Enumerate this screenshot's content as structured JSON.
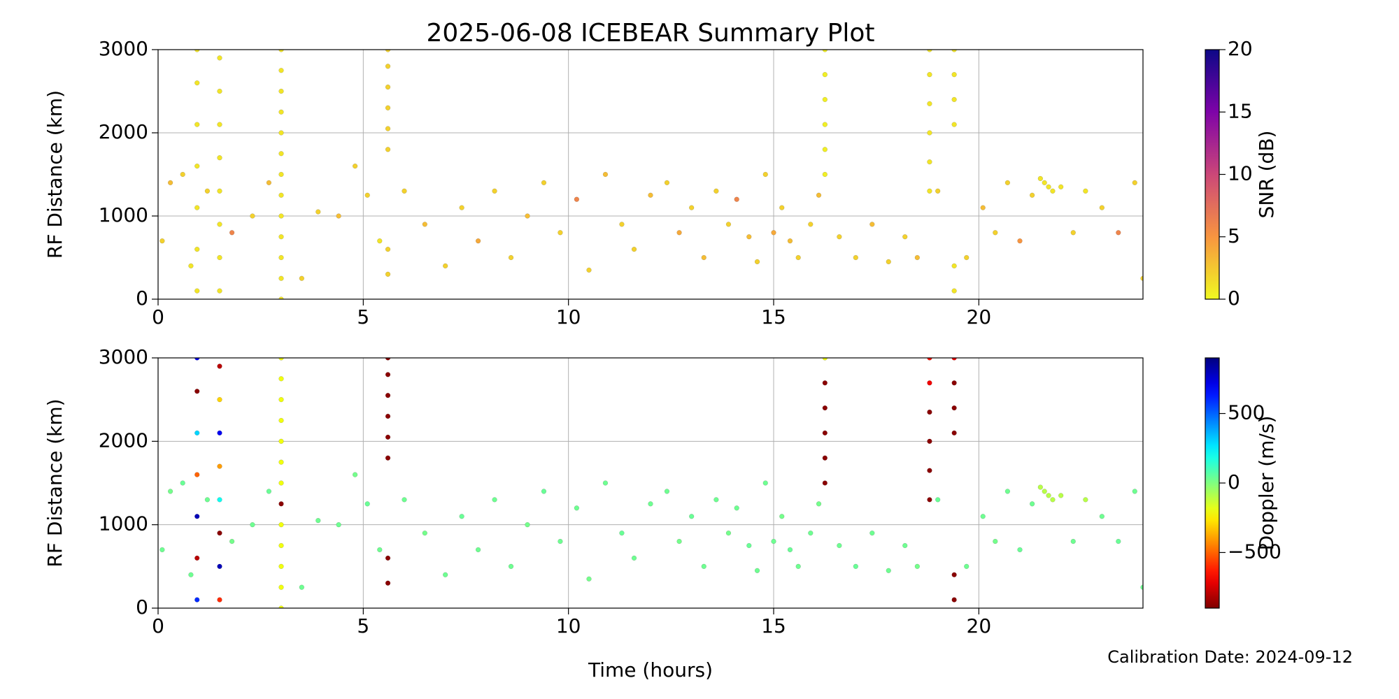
{
  "chart_data": [
    {
      "type": "scatter",
      "title": "2025-06-08 ICEBEAR Summary Plot",
      "ylabel": "RF Distance (km)",
      "xlim": [
        0,
        24
      ],
      "xticks": [
        0,
        5,
        10,
        15,
        20
      ],
      "ylim": [
        0,
        3000
      ],
      "yticks": [
        0,
        1000,
        2000,
        3000
      ],
      "grid": true,
      "colormap": "plasma_r",
      "colorbar": {
        "label": "SNR (dB)",
        "lim": [
          0,
          20
        ],
        "ticks": [
          0,
          5,
          10,
          15,
          20
        ]
      },
      "series": [
        {
          "x": [
            0.1,
            0.3,
            0.6,
            0.8,
            1.2,
            1.8,
            2.3,
            2.7,
            3.5,
            3.9,
            4.4,
            4.8,
            5.1,
            5.4,
            6.0,
            6.5,
            7.0,
            7.4,
            7.8,
            8.2,
            8.6,
            9.0,
            9.4,
            9.8,
            10.2,
            10.5,
            10.9,
            11.3,
            11.6,
            12.0,
            12.4,
            12.7,
            13.0,
            13.3,
            13.6,
            13.9,
            14.1,
            14.4,
            14.6,
            14.8,
            15.0,
            15.2,
            15.4,
            15.6,
            15.9,
            16.1,
            16.6,
            17.0,
            17.4,
            17.8,
            18.2,
            18.5,
            19.0,
            19.7,
            20.1,
            20.4,
            20.7,
            21.0,
            21.3,
            21.5,
            21.6,
            21.7,
            21.8,
            22.0,
            22.3,
            22.6,
            23.0,
            23.4,
            23.8,
            24.0,
            3,
            3,
            3,
            3,
            3,
            3,
            3,
            3,
            3,
            3,
            3,
            3,
            3,
            5.6,
            5.6,
            5.6,
            5.6,
            5.6,
            5.6,
            5.6,
            5.6,
            16.25,
            16.25,
            16.25,
            16.25,
            16.25,
            16.25,
            18.8,
            18.8,
            18.8,
            18.8,
            18.8,
            18.8,
            19.4,
            19.4,
            19.4,
            19.4,
            19.4,
            19.4,
            0.95,
            0.95,
            0.95,
            0.95,
            0.95,
            0.95,
            0.95,
            1.5,
            1.5,
            1.5,
            1.5,
            1.5,
            1.5,
            1.5,
            1.5
          ],
          "values": [
            700,
            1400,
            1500,
            400,
            1300,
            800,
            1000,
            1400,
            250,
            1050,
            1000,
            1600,
            1250,
            700,
            1300,
            900,
            400,
            1100,
            700,
            1300,
            500,
            1000,
            1400,
            800,
            1200,
            350,
            1500,
            900,
            600,
            1250,
            1400,
            800,
            1100,
            500,
            1300,
            900,
            1200,
            750,
            450,
            1500,
            800,
            1100,
            700,
            500,
            900,
            1250,
            750,
            500,
            900,
            450,
            750,
            500,
            1300,
            500,
            1100,
            800,
            1400,
            700,
            1250,
            1450,
            1400,
            1350,
            1300,
            1350,
            800,
            1300,
            1100,
            800,
            1400,
            250,
            0,
            250,
            500,
            750,
            1000,
            1250,
            1500,
            1750,
            2000,
            2250,
            2500,
            2750,
            3000,
            300,
            600,
            1800,
            2050,
            2300,
            2550,
            2800,
            3000,
            1500,
            1800,
            2100,
            2400,
            2700,
            3000,
            1300,
            1650,
            2000,
            2350,
            2700,
            3000,
            100,
            400,
            2100,
            2400,
            2700,
            3000,
            100,
            600,
            1100,
            1600,
            2100,
            2600,
            3000,
            100,
            500,
            900,
            1300,
            1700,
            2100,
            2500,
            2900
          ],
          "c": [
            2,
            3,
            2,
            1,
            2,
            6,
            2,
            3,
            2,
            2,
            3,
            2,
            2,
            1,
            2,
            3,
            2,
            2,
            4,
            2,
            2,
            3,
            2,
            2,
            6,
            2,
            3,
            2,
            2,
            3,
            2,
            4,
            2,
            3,
            2,
            2,
            6,
            3,
            2,
            2,
            4,
            2,
            3,
            2,
            2,
            3,
            2,
            2,
            3,
            2,
            2,
            3,
            2,
            2,
            3,
            2,
            2,
            5,
            2,
            1,
            1,
            1,
            1,
            1,
            2,
            1,
            2,
            6,
            2,
            2,
            1,
            1,
            1,
            1,
            1,
            1,
            1,
            1,
            1,
            1,
            1,
            1,
            1,
            2,
            2,
            2,
            2,
            2,
            2,
            2,
            2,
            0.5,
            0.5,
            0.5,
            0.5,
            0.5,
            0.5,
            1,
            1,
            1,
            1,
            1,
            1,
            1,
            1,
            1,
            1,
            1,
            1,
            1,
            1,
            1,
            1,
            1,
            1,
            1,
            1,
            1,
            1,
            1,
            1,
            1,
            1,
            1
          ]
        }
      ]
    },
    {
      "type": "scatter",
      "ylabel": "RF Distance (km)",
      "xlabel": "Time (hours)",
      "xlim": [
        0,
        24
      ],
      "xticks": [
        0,
        5,
        10,
        15,
        20
      ],
      "ylim": [
        0,
        3000
      ],
      "yticks": [
        0,
        1000,
        2000,
        3000
      ],
      "grid": true,
      "colormap": "jet_r",
      "colorbar": {
        "label": "Doppler (m/s)",
        "lim": [
          -900,
          900
        ],
        "ticks": [
          {
            "value": -500,
            "label": "−500"
          },
          0,
          500
        ]
      },
      "series": [
        {
          "x": [
            0.1,
            0.3,
            0.6,
            0.8,
            1.2,
            1.8,
            2.3,
            2.7,
            3.5,
            3.9,
            4.4,
            4.8,
            5.1,
            5.4,
            6.0,
            6.5,
            7.0,
            7.4,
            7.8,
            8.2,
            8.6,
            9.0,
            9.4,
            9.8,
            10.2,
            10.5,
            10.9,
            11.3,
            11.6,
            12.0,
            12.4,
            12.7,
            13.0,
            13.3,
            13.6,
            13.9,
            14.1,
            14.4,
            14.6,
            14.8,
            15.0,
            15.2,
            15.4,
            15.6,
            15.9,
            16.1,
            16.6,
            17.0,
            17.4,
            17.8,
            18.2,
            18.5,
            19.0,
            19.7,
            20.1,
            20.4,
            20.7,
            21.0,
            21.3,
            21.5,
            21.6,
            21.7,
            21.8,
            22.0,
            22.3,
            22.6,
            23.0,
            23.4,
            23.8,
            24.0,
            3,
            3,
            3,
            3,
            3,
            3,
            3,
            3,
            3,
            3,
            3,
            3,
            3,
            5.6,
            5.6,
            5.6,
            5.6,
            5.6,
            5.6,
            5.6,
            5.6,
            16.25,
            16.25,
            16.25,
            16.25,
            16.25,
            16.25,
            18.8,
            18.8,
            18.8,
            18.8,
            18.8,
            18.8,
            19.4,
            19.4,
            19.4,
            19.4,
            19.4,
            19.4,
            0.95,
            0.95,
            0.95,
            0.95,
            0.95,
            0.95,
            0.95,
            1.5,
            1.5,
            1.5,
            1.5,
            1.5,
            1.5,
            1.5,
            1.5
          ],
          "values": [
            700,
            1400,
            1500,
            400,
            1300,
            800,
            1000,
            1400,
            250,
            1050,
            1000,
            1600,
            1250,
            700,
            1300,
            900,
            400,
            1100,
            700,
            1300,
            500,
            1000,
            1400,
            800,
            1200,
            350,
            1500,
            900,
            600,
            1250,
            1400,
            800,
            1100,
            500,
            1300,
            900,
            1200,
            750,
            450,
            1500,
            800,
            1100,
            700,
            500,
            900,
            1250,
            750,
            500,
            900,
            450,
            750,
            500,
            1300,
            500,
            1100,
            800,
            1400,
            700,
            1250,
            1450,
            1400,
            1350,
            1300,
            1350,
            800,
            1300,
            1100,
            800,
            1400,
            250,
            0,
            250,
            500,
            750,
            1000,
            1250,
            1500,
            1750,
            2000,
            2250,
            2500,
            2750,
            3000,
            300,
            600,
            1800,
            2050,
            2300,
            2550,
            2800,
            3000,
            1500,
            1800,
            2100,
            2400,
            2700,
            3000,
            1300,
            1650,
            2000,
            2350,
            2700,
            3000,
            100,
            400,
            2100,
            2400,
            2700,
            3000,
            100,
            600,
            1100,
            1600,
            2100,
            2600,
            3000,
            100,
            500,
            900,
            1300,
            1700,
            2100,
            2500,
            2900
          ],
          "c": [
            30,
            20,
            40,
            30,
            30,
            20,
            30,
            40,
            30,
            30,
            30,
            20,
            40,
            30,
            30,
            20,
            30,
            40,
            30,
            30,
            30,
            20,
            40,
            30,
            30,
            20,
            30,
            40,
            30,
            30,
            30,
            20,
            40,
            30,
            30,
            20,
            30,
            40,
            30,
            30,
            30,
            20,
            40,
            30,
            30,
            20,
            30,
            40,
            30,
            30,
            30,
            20,
            40,
            30,
            30,
            20,
            30,
            40,
            30,
            -100,
            -100,
            -100,
            -100,
            -100,
            30,
            -100,
            30,
            40,
            30,
            30,
            -200,
            -200,
            -200,
            -200,
            -200,
            -880,
            -200,
            -200,
            -200,
            -200,
            -200,
            -200,
            -200,
            -880,
            -880,
            -880,
            -880,
            -880,
            -880,
            -880,
            -880,
            -880,
            -880,
            -880,
            -880,
            -880,
            -200,
            -880,
            -880,
            -880,
            -880,
            -700,
            -650,
            -880,
            -880,
            -880,
            -880,
            -880,
            -700,
            600,
            -800,
            800,
            -500,
            300,
            -880,
            700,
            -600,
            800,
            -880,
            200,
            -400,
            700,
            -300,
            -800
          ]
        }
      ]
    }
  ],
  "annotation": "Calibration Date: 2024-09-12"
}
